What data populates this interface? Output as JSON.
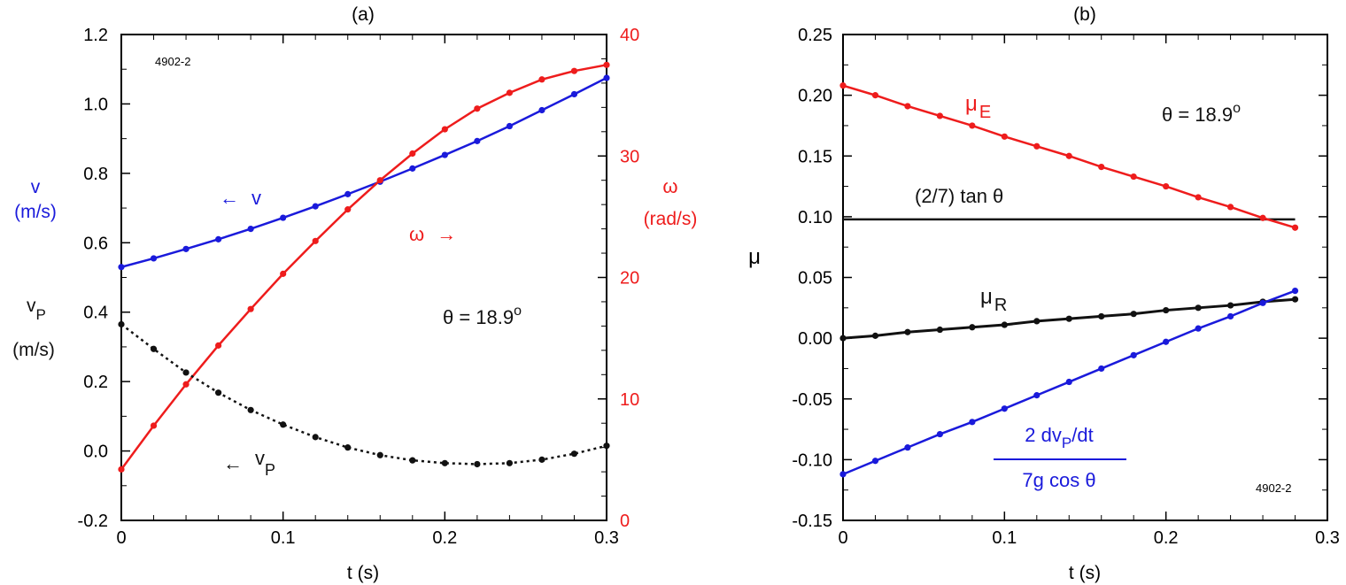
{
  "colors": {
    "blue": "#1a1adb",
    "red": "#ee1c1c",
    "black": "#111111"
  },
  "chart_data": [
    {
      "panel_label": "(a)",
      "type": "line",
      "id_label": "4902-2",
      "xlabel": "t (s)",
      "xlim": [
        0,
        0.3
      ],
      "x_ticks": [
        "0",
        "0.1",
        "0.2",
        "0.3"
      ],
      "ylim_left": [
        -0.2,
        1.2
      ],
      "y_ticks_left": [
        "-0.2",
        "0.0",
        "0.2",
        "0.4",
        "0.6",
        "0.8",
        "1.0",
        "1.2"
      ],
      "ylim_right": [
        0,
        40
      ],
      "y_ticks_right": [
        "0",
        "10",
        "20",
        "30",
        "40"
      ],
      "ylabel_left_v": {
        "symbol": "v",
        "unit": "(m/s)"
      },
      "ylabel_left_vp": {
        "symbol": "v",
        "sub": "P",
        "unit": "(m/s)"
      },
      "ylabel_right": {
        "symbol": "ω",
        "unit": "(rad/s)"
      },
      "annotation": {
        "text": "θ = 18.9",
        "sup": "o"
      },
      "series": [
        {
          "name": "v",
          "axis": "left",
          "color": "blue",
          "style": "solid",
          "label": {
            "arrow": "←",
            "text": "v"
          },
          "x": [
            0,
            0.02,
            0.04,
            0.06,
            0.08,
            0.1,
            0.12,
            0.14,
            0.16,
            0.18,
            0.2,
            0.22,
            0.24,
            0.26,
            0.28,
            0.3
          ],
          "y": [
            0.53,
            0.555,
            0.582,
            0.61,
            0.64,
            0.672,
            0.705,
            0.74,
            0.776,
            0.814,
            0.853,
            0.893,
            0.936,
            0.982,
            1.028,
            1.075
          ]
        },
        {
          "name": "ω",
          "axis": "right",
          "color": "red",
          "style": "solid",
          "label": {
            "text": "ω",
            "arrow": "→"
          },
          "x": [
            0,
            0.02,
            0.04,
            0.06,
            0.08,
            0.1,
            0.12,
            0.14,
            0.16,
            0.18,
            0.2,
            0.22,
            0.24,
            0.26,
            0.28,
            0.3
          ],
          "y": [
            4.2,
            7.8,
            11.2,
            14.4,
            17.4,
            20.3,
            23.0,
            25.6,
            28.0,
            30.2,
            32.2,
            33.9,
            35.2,
            36.3,
            37.0,
            37.5
          ]
        },
        {
          "name": "vP",
          "axis": "left",
          "color": "black",
          "style": "dotted",
          "label": {
            "arrow": "←",
            "text": "v",
            "sub": "P"
          },
          "x": [
            0,
            0.02,
            0.04,
            0.06,
            0.08,
            0.1,
            0.12,
            0.14,
            0.16,
            0.18,
            0.2,
            0.22,
            0.24,
            0.26,
            0.28,
            0.3
          ],
          "y": [
            0.365,
            0.294,
            0.226,
            0.168,
            0.118,
            0.076,
            0.04,
            0.01,
            -0.012,
            -0.027,
            -0.035,
            -0.038,
            -0.035,
            -0.025,
            -0.008,
            0.015
          ]
        }
      ]
    },
    {
      "panel_label": "(b)",
      "type": "line",
      "id_label": "4902-2",
      "xlabel": "t (s)",
      "xlim": [
        0,
        0.3
      ],
      "x_ticks": [
        "0",
        "0.1",
        "0.2",
        "0.3"
      ],
      "ylabel": "μ",
      "ylim": [
        -0.15,
        0.25
      ],
      "y_ticks": [
        "-0.15",
        "-0.10",
        "-0.05",
        "0.00",
        "0.05",
        "0.10",
        "0.15",
        "0.20",
        "0.25"
      ],
      "annotation": {
        "text": "θ = 18.9",
        "sup": "o"
      },
      "reference_line": {
        "label": "(2/7) tan θ",
        "y": 0.0978,
        "x": [
          0,
          0.28
        ]
      },
      "fraction_label": {
        "numerator": "2 dv",
        "numerator_sub": "P",
        "numerator_end": "/dt",
        "denominator": "7g cos θ"
      },
      "series": [
        {
          "name": "μE",
          "color": "red",
          "label": {
            "text": "μ",
            "sub": "E"
          },
          "x": [
            0,
            0.02,
            0.04,
            0.06,
            0.08,
            0.1,
            0.12,
            0.14,
            0.16,
            0.18,
            0.2,
            0.22,
            0.24,
            0.26,
            0.28
          ],
          "y": [
            0.208,
            0.2,
            0.191,
            0.183,
            0.175,
            0.166,
            0.158,
            0.15,
            0.141,
            0.133,
            0.125,
            0.116,
            0.108,
            0.099,
            0.091
          ]
        },
        {
          "name": "μR",
          "color": "black",
          "label": {
            "text": "μ",
            "sub": "R"
          },
          "x": [
            0,
            0.02,
            0.04,
            0.06,
            0.08,
            0.1,
            0.12,
            0.14,
            0.16,
            0.18,
            0.2,
            0.22,
            0.24,
            0.26,
            0.28
          ],
          "y": [
            0.0,
            0.002,
            0.005,
            0.007,
            0.009,
            0.011,
            0.014,
            0.016,
            0.018,
            0.02,
            0.023,
            0.025,
            0.027,
            0.03,
            0.032
          ]
        },
        {
          "name": "2 dvP/dt / 7g cos θ",
          "color": "blue",
          "x": [
            0,
            0.02,
            0.04,
            0.06,
            0.08,
            0.1,
            0.12,
            0.14,
            0.16,
            0.18,
            0.2,
            0.22,
            0.24,
            0.26,
            0.28
          ],
          "y": [
            -0.112,
            -0.101,
            -0.09,
            -0.079,
            -0.069,
            -0.058,
            -0.047,
            -0.036,
            -0.025,
            -0.014,
            -0.003,
            0.008,
            0.018,
            0.029,
            0.039
          ]
        }
      ]
    }
  ]
}
